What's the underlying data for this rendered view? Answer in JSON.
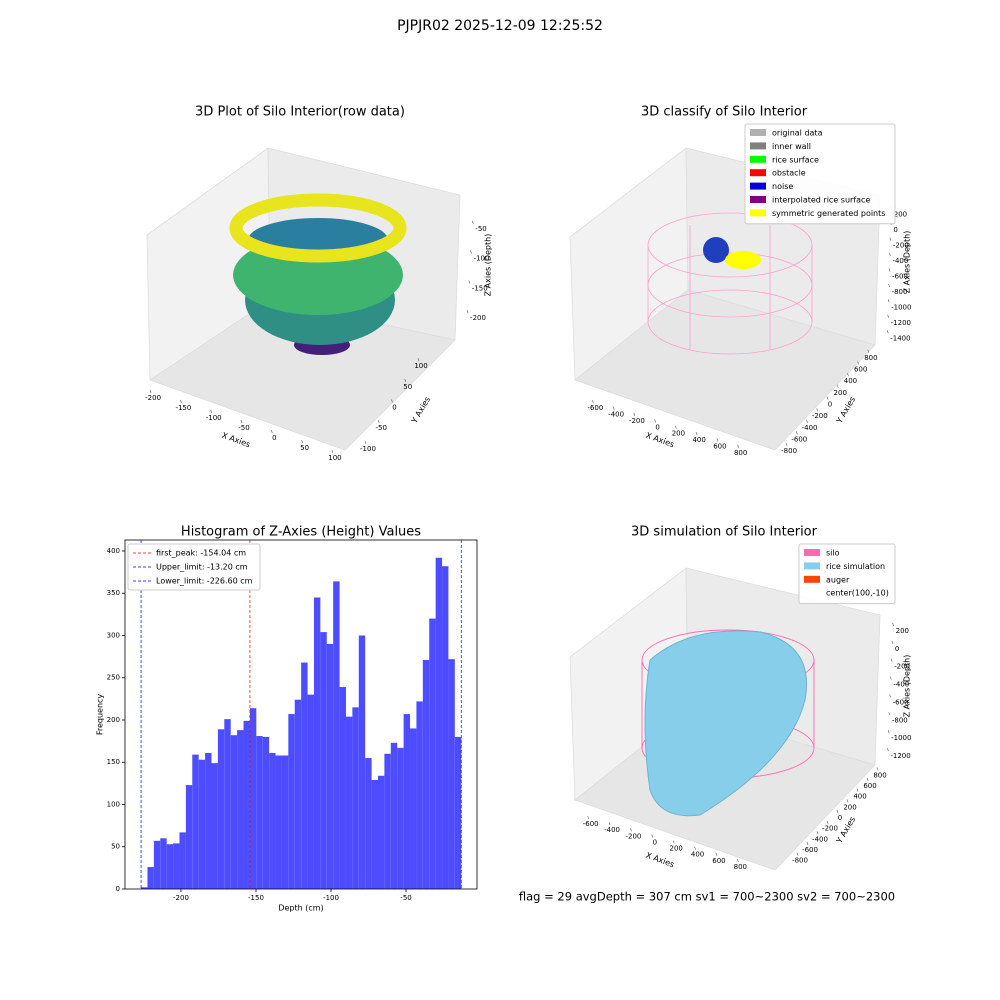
{
  "title": "PJPJR02 2025-12-09 12:25:52",
  "footer": "flag = 29  avgDepth = 307 cm  sv1 = 700~2300  sv2 = 700~2300",
  "chart_data": [
    {
      "type": "scatter3d",
      "title": "3D Plot of Silo Interior(row data)",
      "xlabel": "X Axies",
      "ylabel": "Y Axies",
      "zlabel": "Z Axies (Depth)",
      "xlim": [
        -215,
        110
      ],
      "xticks": [
        -200,
        -150,
        -100,
        -50,
        0,
        50,
        100
      ],
      "ylim": [
        -115,
        115
      ],
      "yticks": [
        -100,
        -50,
        0,
        50,
        100
      ],
      "zlim": [
        -230,
        -30
      ],
      "zticks": [
        -200,
        -150,
        -100,
        -50
      ]
    },
    {
      "type": "scatter3d",
      "title": "3D classify of Silo Interior",
      "xlabel": "X Axies",
      "ylabel": "Y Axies",
      "zlabel": "Z Axies (Depth)",
      "xlim": [
        -700,
        900
      ],
      "xticks": [
        -600,
        -400,
        -200,
        0,
        200,
        400,
        600,
        800
      ],
      "ylim": [
        -900,
        900
      ],
      "yticks": [
        -800,
        -600,
        -400,
        -200,
        0,
        200,
        400,
        600,
        800
      ],
      "zlim": [
        -1500,
        300
      ],
      "zticks": [
        -1400,
        -1200,
        -1000,
        -800,
        -600,
        -400,
        -200,
        0,
        200
      ],
      "legend": [
        {
          "name": "original data",
          "color": "#b0b0b0"
        },
        {
          "name": "inner wall",
          "color": "#808080"
        },
        {
          "name": "rice surface",
          "color": "#00ff00"
        },
        {
          "name": "obstacle",
          "color": "#ff0000"
        },
        {
          "name": "noise",
          "color": "#0000dd"
        },
        {
          "name": "interpolated rice surface",
          "color": "#800080"
        },
        {
          "name": "symmetric generated points",
          "color": "#ffff00"
        }
      ]
    },
    {
      "type": "histogram",
      "title": "Histogram of Z-Axies (Height) Values",
      "xlabel": "Depth (cm)",
      "ylabel": "Frequency",
      "color": "#4d4dff",
      "bins": [
        -226.6,
        -222.33,
        -218.06,
        -213.8,
        -209.53,
        -205.26,
        -200.99,
        -196.72,
        -192.46,
        -188.19,
        -183.92,
        -179.65,
        -175.38,
        -171.12,
        -166.85,
        -162.58,
        -158.31,
        -154.04,
        -149.78,
        -145.51,
        -141.24,
        -136.97,
        -132.7,
        -128.44,
        -124.17,
        -119.9,
        -115.63,
        -111.36,
        -107.1,
        -102.83,
        -98.56,
        -94.29,
        -90.02,
        -85.76,
        -81.49,
        -77.22,
        -72.95,
        -68.68,
        -64.42,
        -60.15,
        -55.88,
        -51.61,
        -47.34,
        -43.08,
        -38.81,
        -34.54,
        -30.27,
        -26.0,
        -21.74,
        -17.47,
        -13.2
      ],
      "values": [
        2,
        26,
        57,
        60,
        53,
        54,
        67,
        123,
        159,
        153,
        161,
        149,
        189,
        201,
        182,
        188,
        199,
        214,
        181,
        180,
        161,
        158,
        158,
        207,
        224,
        268,
        230,
        345,
        304,
        290,
        364,
        239,
        204,
        215,
        300,
        155,
        129,
        134,
        160,
        173,
        167,
        207,
        190,
        222,
        271,
        320,
        392,
        382,
        272,
        180
      ],
      "xlim": [
        -237.3,
        -2.7
      ],
      "xticks": [
        -200,
        -150,
        -100,
        -50
      ],
      "ylim": [
        0,
        413
      ],
      "yticks": [
        0,
        50,
        100,
        150,
        200,
        250,
        300,
        350,
        400
      ],
      "vlines": [
        {
          "name": "first_peak: -154.04 cm",
          "value": -154.04,
          "color": "#ff0000"
        },
        {
          "name": "Upper_limit: -13.20 cm",
          "value": -13.2,
          "color": "#0000ff"
        },
        {
          "name": "Lower_limit: -226.60 cm",
          "value": -226.6,
          "color": "#0000ff"
        }
      ],
      "legend_loc": "upper left"
    },
    {
      "type": "surface3d",
      "title": "3D simulation of Silo Interior",
      "xlabel": "X Axies",
      "ylabel": "Y Axies",
      "zlabel": "Z Axies (Depth)",
      "xlim": [
        -700,
        900
      ],
      "xticks": [
        -600,
        -400,
        -200,
        0,
        200,
        400,
        600,
        800
      ],
      "ylim": [
        -900,
        900
      ],
      "yticks": [
        -800,
        -600,
        -400,
        -200,
        0,
        200,
        400,
        600,
        800
      ],
      "zlim": [
        -1300,
        300
      ],
      "zticks": [
        -1200,
        -1000,
        -800,
        -600,
        -400,
        -200,
        0,
        200
      ],
      "legend": [
        {
          "name": "silo",
          "color": "#ff69b4"
        },
        {
          "name": "rice simulation",
          "color": "#87ceeb"
        },
        {
          "name": "auger",
          "color": "#ff4500"
        },
        {
          "name": "center(100,-10)",
          "color": null
        }
      ]
    }
  ]
}
